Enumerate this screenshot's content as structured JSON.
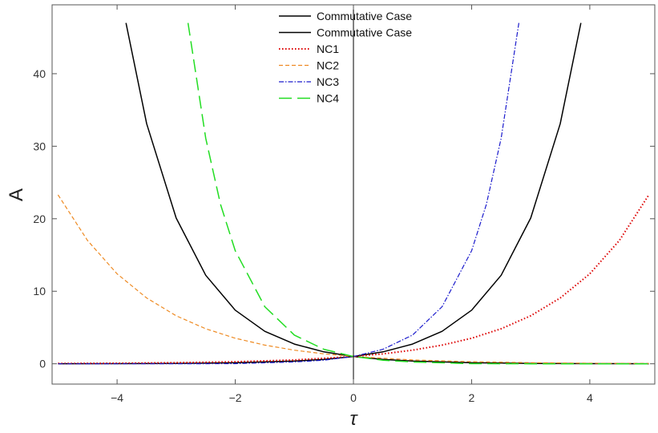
{
  "chart_data": {
    "type": "line",
    "title": "",
    "xlabel": "τ",
    "ylabel": "A",
    "xlim": [
      -5.1,
      5.1
    ],
    "ylim": [
      -2.8,
      49.5
    ],
    "x_ticks": [
      -4,
      -2,
      0,
      2,
      4
    ],
    "x_tick_labels": [
      "−4",
      "−2",
      "0",
      "2",
      "4"
    ],
    "y_ticks": [
      0,
      10,
      20,
      30,
      40
    ],
    "y_tick_labels": [
      "0",
      "10",
      "20",
      "30",
      "40"
    ],
    "grid": false,
    "legend_position": "top-center",
    "series": [
      {
        "name": "Commutative Case",
        "color": "#000000",
        "style": "solid",
        "x": [
          -3.85,
          -3.5,
          -3.0,
          -2.5,
          -2.0,
          -1.5,
          -1.0,
          -0.5,
          0,
          0.5,
          1.0,
          2.0,
          3.0,
          4.0,
          5.0
        ],
        "y": [
          47.0,
          33.1,
          20.1,
          12.2,
          7.39,
          4.48,
          2.72,
          1.65,
          1.0,
          0.61,
          0.37,
          0.14,
          0.05,
          0.02,
          0.01
        ]
      },
      {
        "name": "Commutative Case",
        "color": "#000000",
        "style": "solid",
        "x": [
          -5.0,
          -4.0,
          -3.0,
          -2.0,
          -1.0,
          -0.5,
          0,
          0.5,
          1.0,
          1.5,
          2.0,
          2.5,
          3.0,
          3.5,
          3.85
        ],
        "y": [
          0.01,
          0.02,
          0.05,
          0.14,
          0.37,
          0.61,
          1.0,
          1.65,
          2.72,
          4.48,
          7.39,
          12.2,
          20.1,
          33.1,
          47.0
        ]
      },
      {
        "name": "NC1",
        "color": "#dd0000",
        "style": "dotted",
        "x": [
          -5.0,
          -4.0,
          -3.0,
          -2.0,
          -1.0,
          0,
          0.5,
          1.0,
          1.5,
          2.0,
          2.5,
          3.0,
          3.5,
          4.0,
          4.5,
          5.0
        ],
        "y": [
          0.04,
          0.08,
          0.15,
          0.28,
          0.53,
          1.0,
          1.37,
          1.88,
          2.57,
          3.53,
          4.83,
          6.62,
          9.07,
          12.4,
          17.0,
          23.3
        ]
      },
      {
        "name": "NC2",
        "color": "#ee8a22",
        "style": "dashed",
        "x": [
          -5.0,
          -4.5,
          -4.0,
          -3.5,
          -3.0,
          -2.5,
          -2.0,
          -1.5,
          -1.0,
          -0.5,
          0,
          1.0,
          2.0,
          3.0,
          4.0,
          5.0
        ],
        "y": [
          23.3,
          17.0,
          12.4,
          9.07,
          6.62,
          4.83,
          3.53,
          2.57,
          1.88,
          1.37,
          1.0,
          0.53,
          0.28,
          0.15,
          0.08,
          0.04
        ]
      },
      {
        "name": "NC3",
        "color": "#1a1acc",
        "style": "dashdot",
        "x": [
          -5.0,
          -4.0,
          -3.0,
          -2.0,
          -1.0,
          -0.5,
          0,
          0.5,
          1.0,
          1.5,
          2.0,
          2.25,
          2.5,
          2.8
        ],
        "y": [
          0.0,
          0.0,
          0.0,
          0.02,
          0.25,
          0.5,
          1.0,
          2.0,
          3.96,
          7.87,
          15.6,
          22.0,
          31.1,
          47.0
        ]
      },
      {
        "name": "NC4",
        "color": "#22dd22",
        "style": "longdash",
        "x": [
          -2.8,
          -2.5,
          -2.25,
          -2.0,
          -1.5,
          -1.0,
          -0.5,
          0,
          0.5,
          1.0,
          2.0,
          3.0,
          4.0,
          5.0
        ],
        "y": [
          47.0,
          31.1,
          22.0,
          15.6,
          7.87,
          3.96,
          2.0,
          1.0,
          0.5,
          0.25,
          0.02,
          0.0,
          0.0,
          0.0
        ]
      }
    ]
  }
}
